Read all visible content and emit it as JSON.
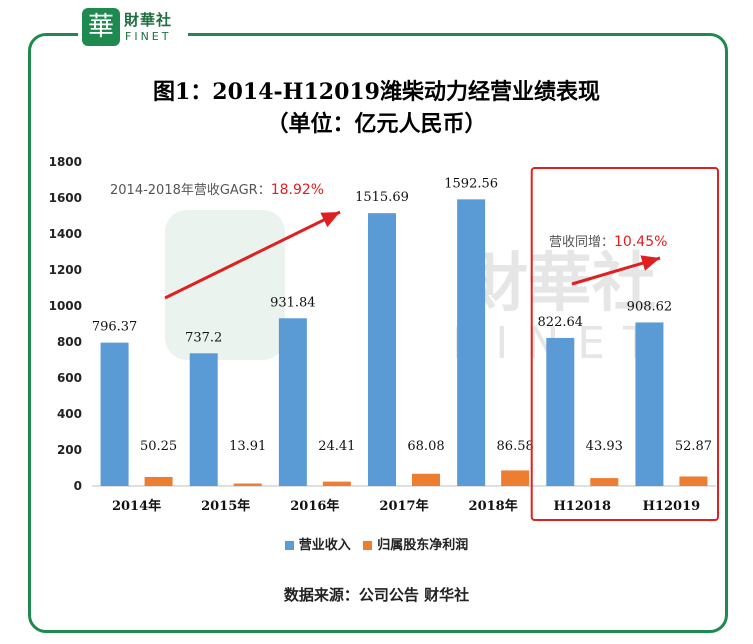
{
  "logo": {
    "mark": "華",
    "cn": "財華社",
    "en": "FINET"
  },
  "watermark": {
    "cn": "財華社",
    "en": "FINET"
  },
  "header": {
    "title_line1": "图1：2014-H12019潍柴动力经营业绩表现",
    "title_line2": "（单位：亿元人民币）"
  },
  "source": "数据来源：公司公告    财华社",
  "colors": {
    "revenue": "#5b9bd5",
    "profit": "#ed7d31",
    "frame": "#1e8a4f",
    "highlight": "#e02020",
    "arrow": "#e02020"
  },
  "annotations": {
    "gagr_label": "2014-2018年营收GAGR：",
    "gagr_value": "18.92%",
    "yoy_label": "营收同增：",
    "yoy_value": "10.45%"
  },
  "chart_data": {
    "type": "bar",
    "categories": [
      "2014年",
      "2015年",
      "2016年",
      "2017年",
      "2018年",
      "H12018",
      "H12019"
    ],
    "series": [
      {
        "name": "营业收入",
        "values": [
          796.37,
          737.2,
          931.84,
          1515.69,
          1592.56,
          822.64,
          908.62
        ],
        "labels": [
          "796.37",
          "737.2",
          "931.84",
          "1515.69",
          "1592.56",
          "822.64",
          "908.62"
        ]
      },
      {
        "name": "归属股东净利润",
        "values": [
          50.25,
          13.91,
          24.41,
          68.08,
          86.58,
          43.93,
          52.87
        ],
        "labels": [
          "50.25",
          "13.91",
          "24.41",
          "68.08",
          "86.58",
          "43.93",
          "52.87"
        ]
      }
    ],
    "ylim": [
      0,
      1800
    ],
    "yticks": [
      "0",
      "200",
      "400",
      "600",
      "800",
      "1000",
      "1200",
      "1400",
      "1600",
      "1800"
    ],
    "legend_position": "bottom",
    "highlight_categories": [
      "H12018",
      "H12019"
    ]
  }
}
